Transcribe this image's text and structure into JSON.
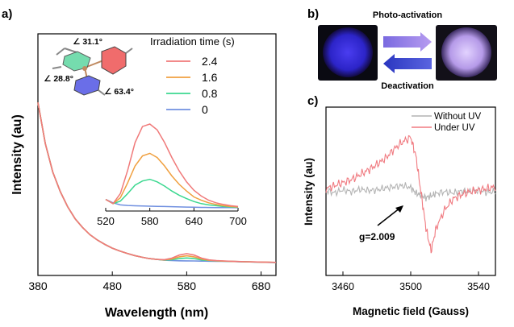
{
  "panels": {
    "a": {
      "label": "a)",
      "chart_data": {
        "type": "line",
        "xlabel": "Wavelength (nm)",
        "ylabel": "Intensity (au)",
        "xlim": [
          380,
          700
        ],
        "xticks": [
          380,
          480,
          580,
          680
        ],
        "yticks": [],
        "legend": {
          "title": "Irradiation time (s)",
          "placement": "top-right"
        },
        "x": [
          380,
          390,
          400,
          410,
          420,
          430,
          440,
          450,
          460,
          470,
          480,
          490,
          500,
          510,
          520,
          530,
          540,
          550,
          560,
          570,
          580,
          590,
          600,
          610,
          620,
          630,
          640,
          650,
          660,
          670,
          680,
          690,
          700
        ],
        "series": [
          {
            "name": "2.4",
            "color": "#f07a7a",
            "values": [
              0.74,
              0.55,
              0.42,
              0.33,
              0.26,
              0.205,
              0.165,
              0.132,
              0.107,
              0.087,
              0.07,
              0.057,
              0.046,
              0.036,
              0.028,
              0.022,
              0.018,
              0.017,
              0.024,
              0.038,
              0.045,
              0.038,
              0.024,
              0.016,
              0.013,
              0.011,
              0.0095,
              0.0085,
              0.0075,
              0.0068,
              0.006,
              0.0052,
              0.0045
            ]
          },
          {
            "name": "1.6",
            "color": "#f0a040",
            "values": [
              0.74,
              0.55,
              0.42,
              0.33,
              0.26,
              0.205,
              0.165,
              0.132,
              0.107,
              0.087,
              0.07,
              0.057,
              0.046,
              0.036,
              0.028,
              0.022,
              0.018,
              0.016,
              0.02,
              0.03,
              0.035,
              0.03,
              0.02,
              0.014,
              0.012,
              0.0105,
              0.0092,
              0.0082,
              0.0073,
              0.0066,
              0.0058,
              0.005,
              0.0043
            ]
          },
          {
            "name": "0.8",
            "color": "#3cd890",
            "values": [
              0.74,
              0.55,
              0.42,
              0.33,
              0.26,
              0.205,
              0.165,
              0.132,
              0.107,
              0.087,
              0.07,
              0.057,
              0.046,
              0.036,
              0.028,
              0.022,
              0.018,
              0.015,
              0.017,
              0.022,
              0.025,
              0.022,
              0.016,
              0.013,
              0.0115,
              0.01,
              0.009,
              0.008,
              0.0071,
              0.0064,
              0.0056,
              0.0048,
              0.0041
            ]
          },
          {
            "name": "0",
            "color": "#7090e0",
            "values": [
              0.74,
              0.55,
              0.42,
              0.33,
              0.26,
              0.205,
              0.165,
              0.132,
              0.107,
              0.087,
              0.07,
              0.057,
              0.046,
              0.036,
              0.028,
              0.022,
              0.018,
              0.0145,
              0.013,
              0.012,
              0.0115,
              0.011,
              0.0105,
              0.0101,
              0.0097,
              0.0093,
              0.0088,
              0.0078,
              0.007,
              0.0062,
              0.0054,
              0.0046,
              0.0039
            ]
          }
        ],
        "inset": {
          "type": "line",
          "xlim": [
            520,
            700
          ],
          "xticks": [
            520,
            580,
            640,
            700
          ],
          "x": [
            520,
            530,
            540,
            550,
            560,
            570,
            580,
            590,
            600,
            610,
            620,
            630,
            640,
            650,
            660,
            670,
            680,
            690,
            700
          ],
          "series": [
            {
              "name": "2.4",
              "values": [
                0.1,
                0.05,
                0.17,
                0.45,
                0.78,
                0.97,
                1.0,
                0.93,
                0.78,
                0.6,
                0.44,
                0.31,
                0.21,
                0.14,
                0.09,
                0.06,
                0.04,
                0.025,
                0.015
              ]
            },
            {
              "name": "1.6",
              "values": [
                0.1,
                0.05,
                0.12,
                0.3,
                0.5,
                0.62,
                0.65,
                0.6,
                0.5,
                0.38,
                0.28,
                0.2,
                0.13,
                0.09,
                0.06,
                0.04,
                0.025,
                0.015,
                0.01
              ]
            },
            {
              "name": "0.8",
              "values": [
                0.1,
                0.05,
                0.08,
                0.17,
                0.27,
                0.32,
                0.34,
                0.31,
                0.26,
                0.2,
                0.15,
                0.11,
                0.075,
                0.05,
                0.035,
                0.025,
                0.015,
                0.01,
                0.006
              ]
            },
            {
              "name": "0",
              "values": [
                0.1,
                0.06,
                0.035,
                0.028,
                0.024,
                0.021,
                0.019,
                0.017,
                0.015,
                0.013,
                0.011,
                0.009,
                0.007,
                0.005,
                0.004,
                0.003,
                0.002,
                0.0015,
                0.001
              ]
            }
          ]
        },
        "annotations": [
          "∠ 31.1°",
          "∠ 28.8°",
          "∠ 63.4°"
        ]
      }
    },
    "b": {
      "label": "b)",
      "top_text": "Photo-activation",
      "bottom_text": "Deactivation",
      "colors": {
        "forward_arrow": "#9a7ee6",
        "reverse_arrow": "#3a46c8",
        "sample_dark": "#3a2ee8",
        "sample_light": "#c4aaf2"
      }
    },
    "c": {
      "label": "c)",
      "chart_data": {
        "type": "line",
        "xlabel": "Magnetic field (Gauss)",
        "ylabel": "Intensity (au)",
        "xlim": [
          3450,
          3550
        ],
        "xticks": [
          3460,
          3500,
          3540
        ],
        "yticks": [],
        "legend": {
          "placement": "top-right"
        },
        "x": [
          3450,
          3455,
          3460,
          3465,
          3470,
          3475,
          3480,
          3485,
          3490,
          3495,
          3500,
          3503,
          3506,
          3509,
          3512,
          3515,
          3520,
          3525,
          3530,
          3535,
          3540,
          3545,
          3550
        ],
        "series": [
          {
            "name": "Without UV",
            "color": "#b4b4b4",
            "values": [
              0.02,
              -0.02,
              0.03,
              0.0,
              0.04,
              0.02,
              0.03,
              0.06,
              0.08,
              0.1,
              0.07,
              -0.02,
              -0.06,
              -0.1,
              -0.07,
              -0.03,
              0.0,
              -0.02,
              0.01,
              0.0,
              0.02,
              -0.01,
              0.0
            ]
          },
          {
            "name": "Under UV",
            "color": "#f07a80",
            "values": [
              0.05,
              0.1,
              0.15,
              0.2,
              0.28,
              0.36,
              0.45,
              0.55,
              0.7,
              0.82,
              0.9,
              0.6,
              0.0,
              -0.6,
              -0.98,
              -0.6,
              -0.3,
              -0.12,
              -0.05,
              0.0,
              0.03,
              0.05,
              0.08
            ]
          }
        ],
        "annotations": [
          "g=2.009"
        ]
      }
    }
  }
}
